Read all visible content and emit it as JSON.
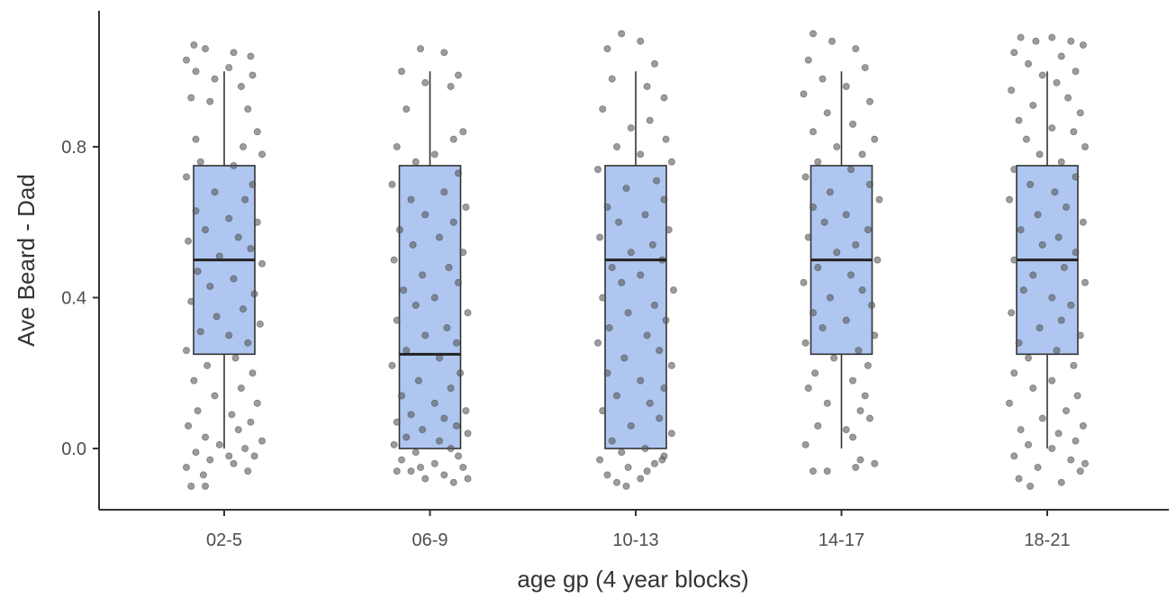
{
  "chart_data": {
    "type": "box",
    "xlabel": "age gp (4 year blocks)",
    "ylabel": "Ave Beard - Dad",
    "categories": [
      "02-5",
      "06-9",
      "10-13",
      "14-17",
      "18-21"
    ],
    "yticks": [
      0.0,
      0.4,
      0.8
    ],
    "ytick_labels": [
      "0.0",
      "0.4",
      "0.8"
    ],
    "ylim": [
      -0.16,
      1.16
    ],
    "grid": false,
    "legend": "none",
    "boxes": [
      {
        "category": "02-5",
        "whisker_low": 0.0,
        "q1": 0.25,
        "median": 0.5,
        "q3": 0.75,
        "whisker_high": 1.0
      },
      {
        "category": "06-9",
        "whisker_low": 0.0,
        "q1": 0.0,
        "median": 0.25,
        "q3": 0.75,
        "whisker_high": 1.0
      },
      {
        "category": "10-13",
        "whisker_low": 0.0,
        "q1": 0.0,
        "median": 0.5,
        "q3": 0.75,
        "whisker_high": 1.0
      },
      {
        "category": "14-17",
        "whisker_low": 0.0,
        "q1": 0.25,
        "median": 0.5,
        "q3": 0.75,
        "whisker_high": 1.0
      },
      {
        "category": "18-21",
        "whisker_low": 0.0,
        "q1": 0.25,
        "median": 0.5,
        "q3": 0.75,
        "whisker_high": 1.0
      }
    ],
    "jitter_points": {
      "02-5": [
        [
          -0.32,
          1.07
        ],
        [
          -0.2,
          1.06
        ],
        [
          -0.4,
          1.03
        ],
        [
          0.1,
          1.05
        ],
        [
          0.28,
          1.04
        ],
        [
          -0.3,
          1.0
        ],
        [
          0.05,
          1.01
        ],
        [
          0.3,
          0.99
        ],
        [
          -0.1,
          0.98
        ],
        [
          0.18,
          0.96
        ],
        [
          -0.35,
          0.93
        ],
        [
          -0.15,
          0.92
        ],
        [
          0.25,
          0.9
        ],
        [
          0.35,
          0.84
        ],
        [
          -0.3,
          0.82
        ],
        [
          0.2,
          0.8
        ],
        [
          0.4,
          0.78
        ],
        [
          -0.25,
          0.76
        ],
        [
          0.1,
          0.75
        ],
        [
          -0.4,
          0.72
        ],
        [
          0.3,
          0.7
        ],
        [
          -0.1,
          0.68
        ],
        [
          0.22,
          0.66
        ],
        [
          -0.3,
          0.63
        ],
        [
          0.05,
          0.61
        ],
        [
          0.35,
          0.6
        ],
        [
          -0.2,
          0.58
        ],
        [
          0.15,
          0.56
        ],
        [
          -0.38,
          0.55
        ],
        [
          0.28,
          0.53
        ],
        [
          -0.05,
          0.51
        ],
        [
          0.4,
          0.49
        ],
        [
          -0.28,
          0.47
        ],
        [
          0.1,
          0.45
        ],
        [
          -0.15,
          0.43
        ],
        [
          0.32,
          0.41
        ],
        [
          -0.35,
          0.39
        ],
        [
          0.2,
          0.37
        ],
        [
          -0.08,
          0.35
        ],
        [
          0.38,
          0.33
        ],
        [
          -0.25,
          0.31
        ],
        [
          0.05,
          0.3
        ],
        [
          0.25,
          0.28
        ],
        [
          -0.4,
          0.26
        ],
        [
          0.12,
          0.24
        ],
        [
          -0.18,
          0.22
        ],
        [
          0.3,
          0.2
        ],
        [
          -0.32,
          0.18
        ],
        [
          0.18,
          0.16
        ],
        [
          -0.1,
          0.14
        ],
        [
          0.35,
          0.12
        ],
        [
          -0.28,
          0.1
        ],
        [
          0.08,
          0.09
        ],
        [
          0.28,
          0.07
        ],
        [
          -0.38,
          0.06
        ],
        [
          0.15,
          0.05
        ],
        [
          -0.2,
          0.03
        ],
        [
          0.4,
          0.02
        ],
        [
          -0.05,
          0.01
        ],
        [
          0.22,
          0.0
        ],
        [
          -0.3,
          -0.01
        ],
        [
          0.32,
          -0.02
        ],
        [
          -0.15,
          -0.03
        ],
        [
          0.1,
          -0.04
        ],
        [
          -0.4,
          -0.05
        ],
        [
          0.25,
          -0.06
        ],
        [
          -0.22,
          -0.07
        ],
        [
          0.05,
          -0.02
        ],
        [
          -0.35,
          -0.1
        ],
        [
          -0.2,
          -0.1
        ]
      ],
      "06-9": [
        [
          -0.1,
          1.06
        ],
        [
          0.15,
          1.05
        ],
        [
          -0.3,
          1.0
        ],
        [
          0.3,
          0.99
        ],
        [
          -0.05,
          0.97
        ],
        [
          0.22,
          0.96
        ],
        [
          -0.25,
          0.9
        ],
        [
          0.35,
          0.84
        ],
        [
          0.25,
          0.82
        ],
        [
          -0.35,
          0.8
        ],
        [
          0.05,
          0.78
        ],
        [
          -0.15,
          0.76
        ],
        [
          0.3,
          0.73
        ],
        [
          -0.4,
          0.7
        ],
        [
          0.15,
          0.68
        ],
        [
          -0.2,
          0.66
        ],
        [
          0.38,
          0.64
        ],
        [
          -0.05,
          0.62
        ],
        [
          0.25,
          0.6
        ],
        [
          -0.32,
          0.58
        ],
        [
          0.1,
          0.56
        ],
        [
          -0.18,
          0.54
        ],
        [
          0.35,
          0.52
        ],
        [
          -0.38,
          0.5
        ],
        [
          0.2,
          0.48
        ],
        [
          -0.08,
          0.46
        ],
        [
          0.3,
          0.44
        ],
        [
          -0.28,
          0.42
        ],
        [
          0.05,
          0.4
        ],
        [
          -0.15,
          0.38
        ],
        [
          0.4,
          0.36
        ],
        [
          -0.35,
          0.34
        ],
        [
          0.18,
          0.32
        ],
        [
          -0.05,
          0.3
        ],
        [
          0.28,
          0.28
        ],
        [
          -0.25,
          0.26
        ],
        [
          0.1,
          0.24
        ],
        [
          -0.4,
          0.22
        ],
        [
          0.32,
          0.2
        ],
        [
          -0.12,
          0.18
        ],
        [
          0.22,
          0.16
        ],
        [
          -0.3,
          0.14
        ],
        [
          0.05,
          0.12
        ],
        [
          0.38,
          0.1
        ],
        [
          -0.2,
          0.09
        ],
        [
          0.15,
          0.08
        ],
        [
          -0.35,
          0.07
        ],
        [
          0.28,
          0.06
        ],
        [
          -0.08,
          0.05
        ],
        [
          0.4,
          0.04
        ],
        [
          -0.25,
          0.03
        ],
        [
          0.1,
          0.02
        ],
        [
          -0.38,
          0.01
        ],
        [
          0.22,
          0.0
        ],
        [
          -0.15,
          -0.01
        ],
        [
          0.3,
          -0.02
        ],
        [
          -0.3,
          -0.03
        ],
        [
          0.05,
          -0.04
        ],
        [
          0.35,
          -0.05
        ],
        [
          -0.2,
          -0.06
        ],
        [
          0.15,
          -0.07
        ],
        [
          -0.05,
          -0.08
        ],
        [
          0.25,
          -0.09
        ],
        [
          -0.35,
          -0.06
        ],
        [
          0.4,
          -0.08
        ],
        [
          -0.1,
          -0.05
        ]
      ],
      "10-13": [
        [
          -0.15,
          1.1
        ],
        [
          0.05,
          1.08
        ],
        [
          -0.3,
          1.06
        ],
        [
          0.2,
          1.02
        ],
        [
          -0.25,
          0.98
        ],
        [
          0.12,
          0.96
        ],
        [
          0.3,
          0.93
        ],
        [
          -0.35,
          0.9
        ],
        [
          0.15,
          0.87
        ],
        [
          -0.05,
          0.85
        ],
        [
          0.32,
          0.82
        ],
        [
          -0.2,
          0.8
        ],
        [
          0.05,
          0.78
        ],
        [
          0.38,
          0.76
        ],
        [
          -0.4,
          0.74
        ],
        [
          0.22,
          0.71
        ],
        [
          -0.1,
          0.69
        ],
        [
          0.3,
          0.66
        ],
        [
          -0.3,
          0.64
        ],
        [
          0.1,
          0.62
        ],
        [
          -0.18,
          0.6
        ],
        [
          0.35,
          0.58
        ],
        [
          -0.38,
          0.56
        ],
        [
          0.18,
          0.54
        ],
        [
          -0.05,
          0.52
        ],
        [
          0.28,
          0.5
        ],
        [
          -0.25,
          0.48
        ],
        [
          0.05,
          0.46
        ],
        [
          -0.15,
          0.44
        ],
        [
          0.4,
          0.42
        ],
        [
          -0.35,
          0.4
        ],
        [
          0.2,
          0.38
        ],
        [
          -0.08,
          0.36
        ],
        [
          0.32,
          0.34
        ],
        [
          -0.28,
          0.32
        ],
        [
          0.12,
          0.3
        ],
        [
          -0.4,
          0.28
        ],
        [
          0.25,
          0.26
        ],
        [
          -0.12,
          0.24
        ],
        [
          0.38,
          0.22
        ],
        [
          -0.3,
          0.2
        ],
        [
          0.05,
          0.18
        ],
        [
          0.3,
          0.16
        ],
        [
          -0.2,
          0.14
        ],
        [
          0.15,
          0.12
        ],
        [
          -0.35,
          0.1
        ],
        [
          0.25,
          0.08
        ],
        [
          -0.05,
          0.06
        ],
        [
          0.38,
          0.04
        ],
        [
          -0.25,
          0.02
        ],
        [
          0.1,
          0.0
        ],
        [
          -0.15,
          -0.01
        ],
        [
          0.3,
          -0.02
        ],
        [
          -0.38,
          -0.03
        ],
        [
          0.2,
          -0.04
        ],
        [
          -0.08,
          -0.05
        ],
        [
          0.12,
          -0.06
        ],
        [
          -0.3,
          -0.07
        ],
        [
          0.05,
          -0.08
        ],
        [
          -0.2,
          -0.09
        ],
        [
          0.28,
          -0.03
        ],
        [
          -0.1,
          -0.1
        ]
      ],
      "14-17": [
        [
          -0.3,
          1.1
        ],
        [
          -0.1,
          1.08
        ],
        [
          0.15,
          1.06
        ],
        [
          -0.35,
          1.03
        ],
        [
          0.25,
          1.01
        ],
        [
          -0.2,
          0.98
        ],
        [
          0.05,
          0.96
        ],
        [
          -0.4,
          0.94
        ],
        [
          0.3,
          0.92
        ],
        [
          -0.15,
          0.89
        ],
        [
          0.12,
          0.86
        ],
        [
          -0.3,
          0.84
        ],
        [
          0.35,
          0.82
        ],
        [
          -0.05,
          0.8
        ],
        [
          0.22,
          0.78
        ],
        [
          -0.25,
          0.76
        ],
        [
          0.1,
          0.74
        ],
        [
          -0.38,
          0.72
        ],
        [
          0.3,
          0.7
        ],
        [
          -0.12,
          0.68
        ],
        [
          0.4,
          0.66
        ],
        [
          -0.3,
          0.64
        ],
        [
          0.05,
          0.62
        ],
        [
          -0.18,
          0.6
        ],
        [
          0.28,
          0.58
        ],
        [
          -0.35,
          0.56
        ],
        [
          0.15,
          0.54
        ],
        [
          -0.05,
          0.52
        ],
        [
          0.38,
          0.5
        ],
        [
          -0.25,
          0.48
        ],
        [
          0.1,
          0.46
        ],
        [
          -0.4,
          0.44
        ],
        [
          0.22,
          0.42
        ],
        [
          -0.12,
          0.4
        ],
        [
          0.32,
          0.38
        ],
        [
          -0.3,
          0.36
        ],
        [
          0.05,
          0.34
        ],
        [
          -0.2,
          0.32
        ],
        [
          0.35,
          0.3
        ],
        [
          -0.38,
          0.28
        ],
        [
          0.18,
          0.26
        ],
        [
          -0.08,
          0.24
        ],
        [
          0.28,
          0.22
        ],
        [
          -0.28,
          0.2
        ],
        [
          0.12,
          0.18
        ],
        [
          -0.35,
          0.16
        ],
        [
          0.25,
          0.14
        ],
        [
          -0.15,
          0.12
        ],
        [
          0.2,
          0.1
        ],
        [
          0.3,
          0.08
        ],
        [
          -0.25,
          0.06
        ],
        [
          0.05,
          0.05
        ],
        [
          0.12,
          0.03
        ],
        [
          -0.38,
          0.01
        ],
        [
          0.35,
          -0.04
        ],
        [
          -0.3,
          -0.06
        ],
        [
          0.15,
          -0.05
        ],
        [
          -0.15,
          -0.06
        ],
        [
          0.2,
          -0.03
        ]
      ],
      "18-21": [
        [
          -0.28,
          1.09
        ],
        [
          -0.12,
          1.08
        ],
        [
          0.05,
          1.09
        ],
        [
          0.25,
          1.08
        ],
        [
          0.38,
          1.07
        ],
        [
          -0.35,
          1.05
        ],
        [
          0.15,
          1.04
        ],
        [
          -0.2,
          1.02
        ],
        [
          0.3,
          1.0
        ],
        [
          -0.05,
          0.99
        ],
        [
          0.1,
          0.97
        ],
        [
          -0.38,
          0.95
        ],
        [
          0.22,
          0.93
        ],
        [
          -0.15,
          0.91
        ],
        [
          0.35,
          0.89
        ],
        [
          -0.3,
          0.87
        ],
        [
          0.05,
          0.85
        ],
        [
          0.28,
          0.84
        ],
        [
          -0.22,
          0.82
        ],
        [
          0.4,
          0.8
        ],
        [
          -0.08,
          0.78
        ],
        [
          0.15,
          0.76
        ],
        [
          -0.35,
          0.74
        ],
        [
          0.3,
          0.72
        ],
        [
          -0.18,
          0.7
        ],
        [
          0.08,
          0.68
        ],
        [
          -0.4,
          0.66
        ],
        [
          0.2,
          0.64
        ],
        [
          -0.1,
          0.62
        ],
        [
          0.38,
          0.6
        ],
        [
          -0.28,
          0.58
        ],
        [
          0.12,
          0.56
        ],
        [
          -0.05,
          0.54
        ],
        [
          0.3,
          0.52
        ],
        [
          -0.35,
          0.5
        ],
        [
          0.18,
          0.48
        ],
        [
          -0.15,
          0.46
        ],
        [
          0.4,
          0.44
        ],
        [
          -0.25,
          0.42
        ],
        [
          0.05,
          0.4
        ],
        [
          0.25,
          0.38
        ],
        [
          -0.38,
          0.36
        ],
        [
          0.15,
          0.34
        ],
        [
          -0.08,
          0.32
        ],
        [
          0.35,
          0.3
        ],
        [
          -0.3,
          0.28
        ],
        [
          0.1,
          0.26
        ],
        [
          -0.2,
          0.24
        ],
        [
          0.28,
          0.22
        ],
        [
          -0.35,
          0.2
        ],
        [
          0.05,
          0.18
        ],
        [
          -0.15,
          0.16
        ],
        [
          0.32,
          0.14
        ],
        [
          -0.4,
          0.12
        ],
        [
          0.2,
          0.1
        ],
        [
          -0.05,
          0.08
        ],
        [
          0.38,
          0.06
        ],
        [
          -0.28,
          0.05
        ],
        [
          0.12,
          0.04
        ],
        [
          0.3,
          0.02
        ],
        [
          -0.2,
          0.01
        ],
        [
          0.05,
          0.0
        ],
        [
          -0.35,
          -0.02
        ],
        [
          0.25,
          -0.03
        ],
        [
          -0.1,
          -0.05
        ],
        [
          0.35,
          -0.06
        ],
        [
          -0.3,
          -0.08
        ],
        [
          0.15,
          -0.09
        ],
        [
          -0.18,
          -0.1
        ],
        [
          0.4,
          -0.04
        ]
      ]
    },
    "colors": {
      "box_fill": "#aec6f0",
      "box_stroke": "#333333",
      "point": "#5a5a5a",
      "axis": "#333333",
      "tick_text": "#4d4d4d"
    }
  }
}
